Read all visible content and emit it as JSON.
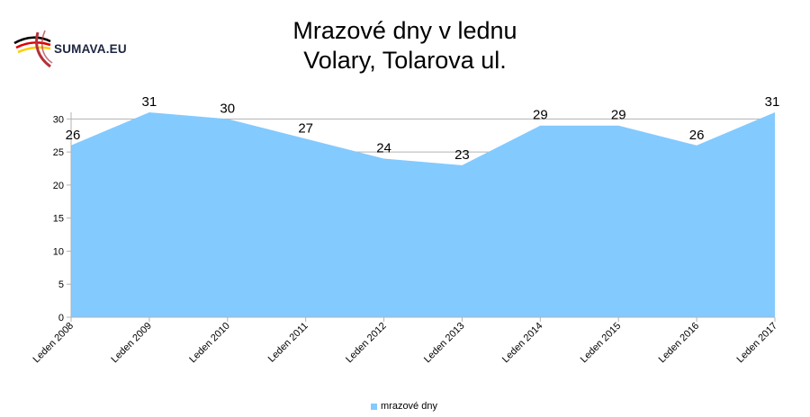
{
  "brand": {
    "logo_text": "SUMAVA.EU",
    "colors": [
      "#000000",
      "#dd0000",
      "#ffce00",
      "#b5313a"
    ]
  },
  "chart_data": {
    "type": "area",
    "title": [
      "Mrazové dny v lednu",
      "Volary, Tolarova ul."
    ],
    "categories": [
      "Leden 2008",
      "Leden 2009",
      "Leden 2010",
      "Leden 2011",
      "Leden 2012",
      "Leden 2013",
      "Leden 2014",
      "Leden 2015",
      "Leden 2016",
      "Leden 2017"
    ],
    "series": [
      {
        "name": "mrazové dny",
        "values": [
          26,
          31,
          30,
          27,
          24,
          23,
          29,
          29,
          26,
          31
        ],
        "color": "#83caff"
      }
    ],
    "ylim": [
      0,
      31
    ],
    "yticks": [
      0,
      5,
      10,
      15,
      20,
      25,
      30
    ],
    "grid": true,
    "data_labels": true,
    "legend": "bottom"
  }
}
